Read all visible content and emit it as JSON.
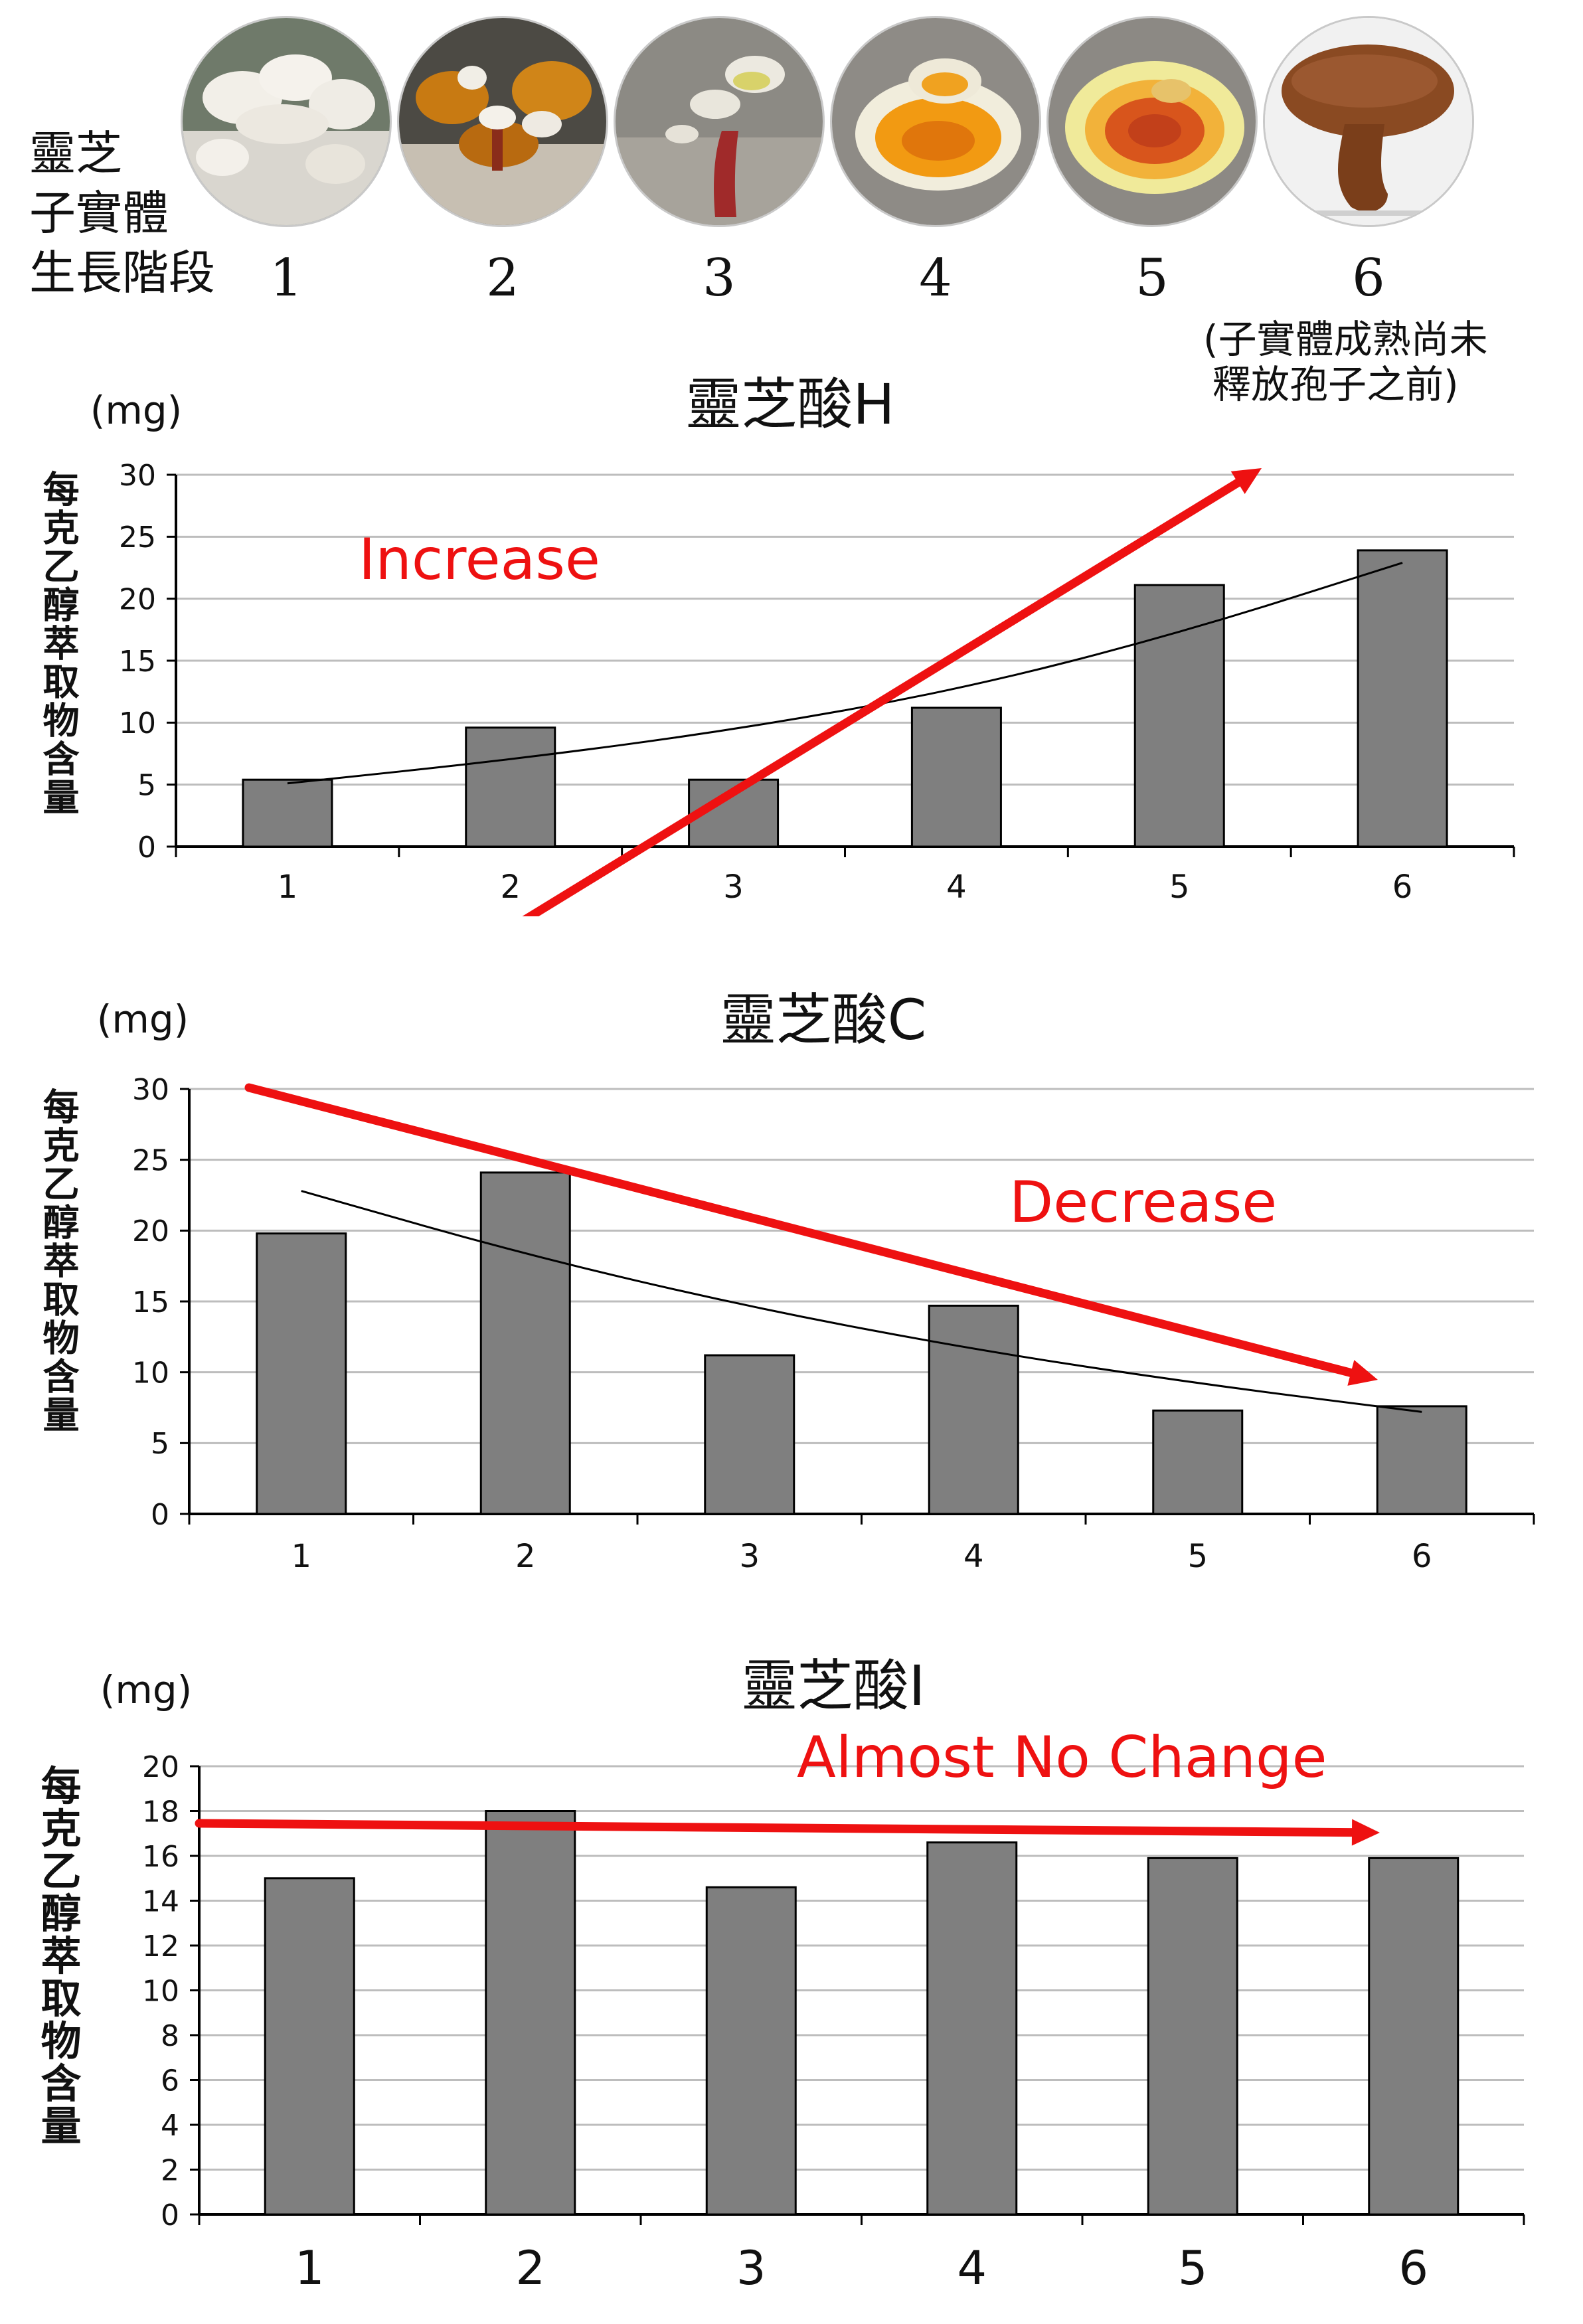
{
  "header": {
    "title_lines": [
      "靈芝",
      "子實體",
      "生長階段"
    ],
    "stages": [
      "1",
      "2",
      "3",
      "4",
      "5",
      "6"
    ],
    "stage6_note_lines": [
      "(子實體成熟尚未",
      "釋放孢子之前)"
    ],
    "photo_descriptions": [
      "stage-1",
      "stage-2",
      "stage-3",
      "stage-4",
      "stage-5",
      "stage-6"
    ]
  },
  "colors": {
    "bar": "#7f7f7f",
    "bar_stroke": "#000000",
    "arrow": "#ee1111",
    "grid": "#bdbdbd",
    "trend": "#000000"
  },
  "chart_data": [
    {
      "type": "bar",
      "title": "靈芝酸H",
      "unit": "(mg)",
      "ylabel": "每克乙醇萃取物含量",
      "categories": [
        "1",
        "2",
        "3",
        "4",
        "5",
        "6"
      ],
      "values": [
        5.4,
        9.6,
        5.4,
        11.2,
        21.1,
        23.9
      ],
      "ylim": [
        0,
        30
      ],
      "yticks": [
        0,
        5,
        10,
        15,
        20,
        25,
        30
      ],
      "trendline": "exponential",
      "trend_values": [
        5.1,
        7.0,
        9.4,
        12.6,
        17.2,
        22.9
      ],
      "annotation": {
        "text": "Increase",
        "direction": "up"
      }
    },
    {
      "type": "bar",
      "title": "靈芝酸C",
      "unit": "(mg)",
      "ylabel": "每克乙醇萃取物含量",
      "categories": [
        "1",
        "2",
        "3",
        "4",
        "5",
        "6"
      ],
      "values": [
        19.8,
        24.1,
        11.2,
        14.7,
        7.3,
        7.6
      ],
      "ylim": [
        0,
        30
      ],
      "yticks": [
        0,
        5,
        10,
        15,
        20,
        25,
        30
      ],
      "trendline": "exponential",
      "trend_values": [
        22.8,
        18.3,
        14.6,
        11.6,
        9.2,
        7.2
      ],
      "annotation": {
        "text": "Decrease",
        "direction": "down"
      }
    },
    {
      "type": "bar",
      "title": "靈芝酸I",
      "unit": "(mg)",
      "ylabel": "每克乙醇萃取物含量",
      "categories": [
        "1",
        "2",
        "3",
        "4",
        "5",
        "6"
      ],
      "values": [
        15.0,
        18.0,
        14.6,
        16.6,
        15.9,
        15.9
      ],
      "ylim": [
        0,
        20
      ],
      "yticks": [
        0,
        2,
        4,
        6,
        8,
        10,
        12,
        14,
        16,
        18,
        20
      ],
      "trendline": "none",
      "trend_values": [],
      "annotation": {
        "text": "Almost No Change",
        "direction": "flat"
      }
    }
  ]
}
